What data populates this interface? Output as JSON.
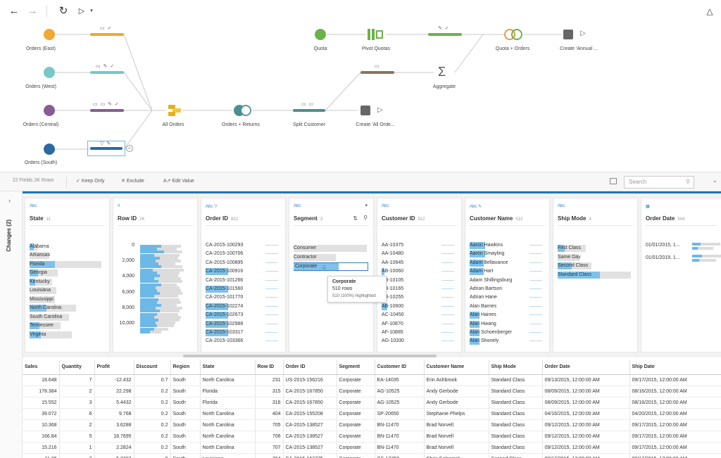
{
  "toolbar": {
    "back_icon": "arrow-left-icon",
    "forward_icon": "arrow-right-icon",
    "refresh_icon": "refresh-icon",
    "run_icon": "play-icon",
    "alert_icon": "bell-icon"
  },
  "flow": {
    "nodes": {
      "orders_east": "Orders (East)",
      "orders_west": "Orders (West)",
      "orders_central": "Orders (Central)",
      "orders_south": "Orders (South)",
      "all_orders": "All Orders",
      "orders_returns": "Orders + Returns",
      "split_customer": "Split Customer",
      "create_all_orders": "Create 'All Orde...",
      "quota": "Quota",
      "pivot_quotas": "Pivot Quotas",
      "aggregate": "Aggregate",
      "quota_orders": "Quota + Orders",
      "create_annual": "Create 'Annual ..."
    },
    "colors": {
      "orange": "#f0a830",
      "teal": "#78c8c8",
      "purple": "#8a5a96",
      "blue": "#2a6aa0",
      "green": "#6cb24a",
      "brown": "#8a7460",
      "dark": "#4a9090"
    }
  },
  "fieldbar": {
    "summary": "22 Fields  2K Rows",
    "keep_only": "Keep Only",
    "exclude": "Exclude",
    "edit_value": "Edit Value",
    "search_placeholder": "Search"
  },
  "sidebar": {
    "changes_label": "Changes (2)"
  },
  "profile": {
    "state": {
      "type": "Abc",
      "name": "State",
      "count": "11",
      "values": [
        "Alabama",
        "Arkansas",
        "Florida",
        "Georgia",
        "Kentucky",
        "Louisiana",
        "Mississippi",
        "North Carolina",
        "South Carolina",
        "Tennessee",
        "Virginia"
      ]
    },
    "row_id": {
      "type": "#",
      "name": "Row ID",
      "count": "2K",
      "ticks": [
        "0",
        "2,000",
        "4,000",
        "6,000",
        "8,000",
        "10,000"
      ]
    },
    "order_id": {
      "type": "Abc",
      "name": "Order ID",
      "count": "822",
      "values": [
        "CA-2015-100293",
        "CA-2015-100706",
        "CA-2015-100895",
        "CA-2015-100916",
        "CA-2015-101266",
        "CA-2015-101560",
        "CA-2015-101770",
        "CA-2015-102274",
        "CA-2015-102673",
        "CA-2015-102988",
        "CA-2015-103317",
        "CA-2015-103366"
      ]
    },
    "segment": {
      "type": "Abc",
      "name": "Segment",
      "count": "3",
      "values": [
        "Consumer",
        "Contractor",
        "Corporate"
      ]
    },
    "customer_id": {
      "type": "Abc",
      "name": "Customer ID",
      "count": "512",
      "values": [
        "AA-10375",
        "AA-10480",
        "AA-10645",
        "AB-10060",
        "AB-10105",
        "AB-10165",
        "AB-10255",
        "AB-10600",
        "AC-10450",
        "AF-10870",
        "AF-10885",
        "AG-10330"
      ]
    },
    "customer_name": {
      "type": "Abc",
      "name": "Customer Name",
      "count": "512",
      "values": [
        "Aaron Hawkins",
        "Aaron Smayling",
        "Adam Bellavance",
        "Adam Hart",
        "Adam Shillingsburg",
        "Adrian Bartson",
        "Adrian Hane",
        "Alan Barnes",
        "Alan Haines",
        "Alan Hwang",
        "Alan Schoenberger",
        "Alan Shonely"
      ]
    },
    "ship_mode": {
      "type": "Abc",
      "name": "Ship Mode",
      "count": "4",
      "values": [
        "First Class",
        "Same Day",
        "Second Class",
        "Standard Class"
      ]
    },
    "order_date": {
      "type": "date",
      "name": "Order Date",
      "count": "504",
      "values": [
        "01/01/2015, 1...",
        "01/01/2019, 1..."
      ]
    }
  },
  "tooltip": {
    "title": "Corporate",
    "rows": "510 rows",
    "highlight": "510 (100%) highlighted"
  },
  "grid": {
    "columns": [
      "Sales",
      "Quantity",
      "Profit",
      "Discount",
      "Region",
      "State",
      "Row ID",
      "Order ID",
      "Segment",
      "Customer ID",
      "Customer Name",
      "Ship Mode",
      "Order Date",
      "Ship Date"
    ],
    "rows": [
      [
        "18.648",
        "7",
        "-12.432",
        "0.7",
        "South",
        "North Carolina",
        "231",
        "US-2015-156216",
        "Corporate",
        "EA-14035",
        "Erin Ashbrook",
        "Standard Class",
        "09/13/2015, 12:00:00 AM",
        "09/17/2015, 12:00:00 AM"
      ],
      [
        "178.384",
        "2",
        "22.298",
        "0.2",
        "South",
        "Florida",
        "315",
        "CA-2015-167850",
        "Corporate",
        "AG-10525",
        "Andy Gerbode",
        "Standard Class",
        "08/09/2015, 12:00:00 AM",
        "08/16/2015, 12:00:00 AM"
      ],
      [
        "15.552",
        "3",
        "5.4432",
        "0.2",
        "South",
        "Florida",
        "316",
        "CA-2015-167850",
        "Corporate",
        "AG-10525",
        "Andy Gerbode",
        "Standard Class",
        "08/09/2015, 12:00:00 AM",
        "08/16/2015, 12:00:00 AM"
      ],
      [
        "39.072",
        "6",
        "9.768",
        "0.2",
        "South",
        "North Carolina",
        "404",
        "CA-2015-155208",
        "Corporate",
        "SP-20650",
        "Stephanie Phelps",
        "Standard Class",
        "04/16/2015, 12:00:00 AM",
        "04/20/2015, 12:00:00 AM"
      ],
      [
        "10.368",
        "2",
        "3.6288",
        "0.2",
        "South",
        "North Carolina",
        "705",
        "CA-2015-138527",
        "Corporate",
        "BN-11470",
        "Brad Norvell",
        "Standard Class",
        "09/12/2015, 12:00:00 AM",
        "09/17/2015, 12:00:00 AM"
      ],
      [
        "166.84",
        "5",
        "18.7695",
        "0.2",
        "South",
        "North Carolina",
        "706",
        "CA-2015-138527",
        "Corporate",
        "BN-11470",
        "Brad Norvell",
        "Standard Class",
        "09/12/2015, 12:00:00 AM",
        "09/17/2015, 12:00:00 AM"
      ],
      [
        "15.216",
        "1",
        "2.2824",
        "0.2",
        "South",
        "North Carolina",
        "707",
        "CA-2015-138527",
        "Corporate",
        "BN-11470",
        "Brad Norvell",
        "Standard Class",
        "09/12/2015, 12:00:00 AM",
        "09/17/2015, 12:00:00 AM"
      ],
      [
        "11.36",
        "2",
        "5.3392",
        "0",
        "South",
        "Louisiana",
        "764",
        "CA-2015-162775",
        "Corporate",
        "CS-12250",
        "Chris Selesnick",
        "Second Class",
        "09/13/2015, 12:00:00 AM",
        "09/17/2015, 12:00:00 AM"
      ]
    ]
  }
}
